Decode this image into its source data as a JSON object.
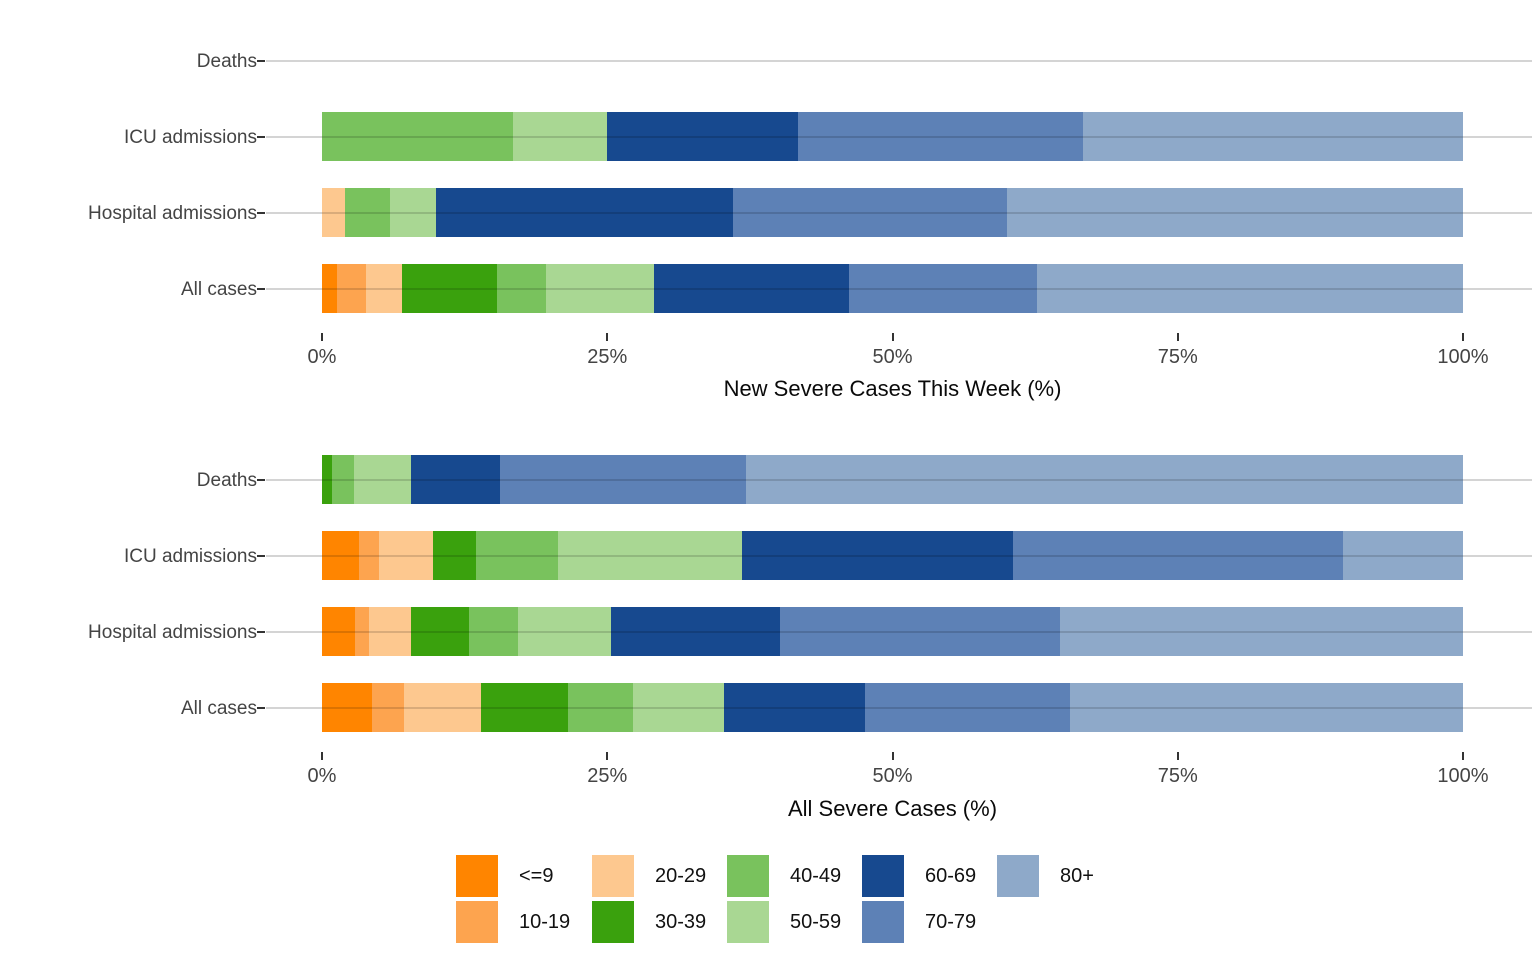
{
  "figure": {
    "background": "#FFFFFF",
    "gridline_color": "#D4D4D4",
    "tick_color": "#333333",
    "label_color": "#444444"
  },
  "legend": {
    "entries": [
      {
        "label": "<=9",
        "color": "#FF8500"
      },
      {
        "label": "10-19",
        "color": "#FDA44F"
      },
      {
        "label": "20-29",
        "color": "#FDC88F"
      },
      {
        "label": "30-39",
        "color": "#3AA10D"
      },
      {
        "label": "40-49",
        "color": "#79C25D"
      },
      {
        "label": "50-59",
        "color": "#A9D793"
      },
      {
        "label": "60-69",
        "color": "#17498F"
      },
      {
        "label": "70-79",
        "color": "#5D81B6"
      },
      {
        "label": "80+",
        "color": "#8EA9C9"
      }
    ]
  },
  "chart_data": [
    {
      "type": "bar",
      "orientation": "horizontal",
      "stacked": true,
      "xlabel": "New Severe Cases This Week (%)",
      "xlim": [
        0,
        100
      ],
      "x_ticks": [
        0,
        25,
        50,
        75,
        100
      ],
      "x_tick_labels": [
        "0%",
        "25%",
        "50%",
        "75%",
        "100%"
      ],
      "grid": true,
      "categories": [
        "Deaths",
        "ICU admissions",
        "Hospital admissions",
        "All cases"
      ],
      "series": [
        {
          "name": "<=9",
          "values": [
            0,
            0,
            0,
            1.3
          ]
        },
        {
          "name": "10-19",
          "values": [
            0,
            0,
            0,
            2.6
          ]
        },
        {
          "name": "20-29",
          "values": [
            0,
            0,
            2.0,
            3.1
          ]
        },
        {
          "name": "30-39",
          "values": [
            0,
            0,
            0,
            8.3
          ]
        },
        {
          "name": "40-49",
          "values": [
            0,
            16.7,
            4.0,
            4.3
          ]
        },
        {
          "name": "50-59",
          "values": [
            0,
            8.3,
            4.0,
            9.5
          ]
        },
        {
          "name": "60-69",
          "values": [
            0,
            16.7,
            26.0,
            17.1
          ]
        },
        {
          "name": "70-79",
          "values": [
            0,
            25.0,
            24.0,
            16.5
          ]
        },
        {
          "name": "80+",
          "values": [
            0,
            33.3,
            40.0,
            37.3
          ]
        }
      ]
    },
    {
      "type": "bar",
      "orientation": "horizontal",
      "stacked": true,
      "xlabel": "All Severe Cases (%)",
      "xlim": [
        0,
        100
      ],
      "x_ticks": [
        0,
        25,
        50,
        75,
        100
      ],
      "x_tick_labels": [
        "0%",
        "25%",
        "50%",
        "75%",
        "100%"
      ],
      "grid": true,
      "categories": [
        "Deaths",
        "ICU admissions",
        "Hospital admissions",
        "All cases"
      ],
      "series": [
        {
          "name": "<=9",
          "values": [
            0,
            3.2,
            2.9,
            4.4
          ]
        },
        {
          "name": "10-19",
          "values": [
            0,
            1.8,
            1.2,
            2.8
          ]
        },
        {
          "name": "20-29",
          "values": [
            0,
            4.7,
            3.7,
            6.7
          ]
        },
        {
          "name": "30-39",
          "values": [
            0.9,
            3.8,
            5.1,
            7.7
          ]
        },
        {
          "name": "40-49",
          "values": [
            1.9,
            7.2,
            4.3,
            5.7
          ]
        },
        {
          "name": "50-59",
          "values": [
            5.0,
            16.1,
            8.1,
            7.9
          ]
        },
        {
          "name": "60-69",
          "values": [
            7.8,
            23.8,
            14.8,
            12.4
          ]
        },
        {
          "name": "70-79",
          "values": [
            21.6,
            28.9,
            24.6,
            18.0
          ]
        },
        {
          "name": "80+",
          "values": [
            62.8,
            10.5,
            35.3,
            34.4
          ]
        }
      ]
    }
  ]
}
